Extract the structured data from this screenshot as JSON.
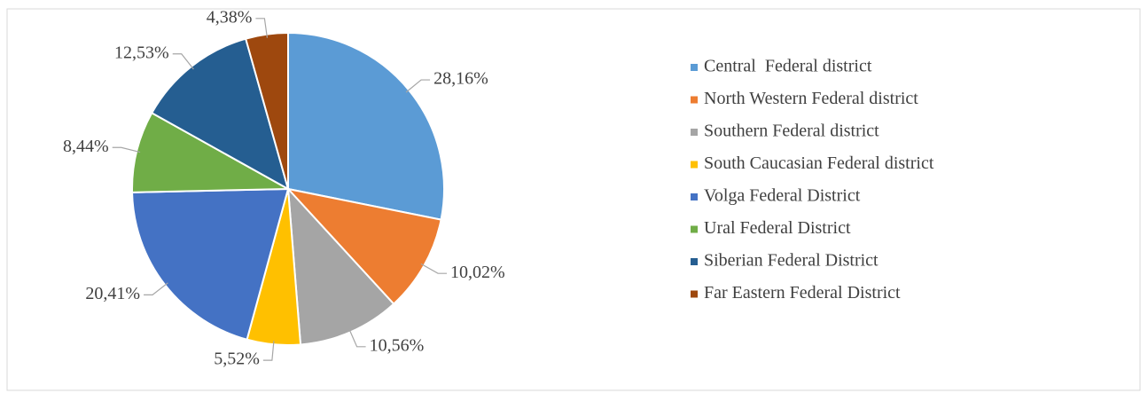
{
  "chart_data": {
    "type": "pie",
    "categories": [
      "Central  Federal district",
      "North Western Federal district",
      "Southern Federal district",
      "South Caucasian Federal district",
      "Volga Federal District",
      "Ural Federal District",
      "Siberian Federal District",
      "Far Eastern Federal District"
    ],
    "values": [
      28.16,
      10.02,
      10.56,
      5.52,
      20.41,
      8.44,
      12.53,
      4.38
    ],
    "value_labels": [
      "28,16%",
      "10,02%",
      "10,56%",
      "5,52%",
      "20,41%",
      "8,44%",
      "12,53%",
      "4,38%"
    ],
    "colors": [
      "#5b9bd5",
      "#ed7d31",
      "#a5a5a5",
      "#ffc000",
      "#4472c4",
      "#70ad47",
      "#255e91",
      "#9e480e"
    ],
    "legend": "right"
  }
}
